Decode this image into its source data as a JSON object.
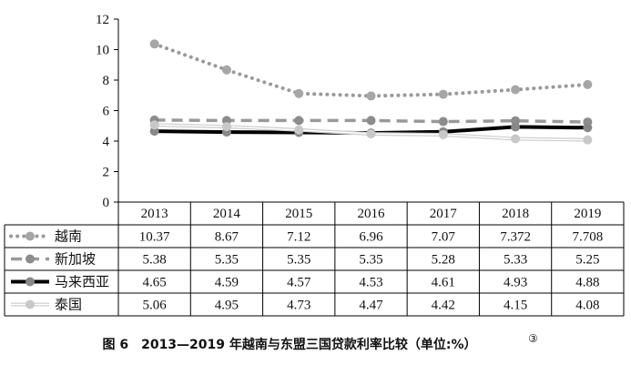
{
  "chart_data": {
    "type": "line",
    "categories": [
      "2013",
      "2014",
      "2015",
      "2016",
      "2017",
      "2018",
      "2019"
    ],
    "ylim": [
      0,
      12
    ],
    "yticks": [
      "0",
      "2",
      "4",
      "6",
      "8",
      "10",
      "12"
    ],
    "grid": false,
    "legend": "table-left",
    "series": [
      {
        "name": "越南",
        "values": [
          10.37,
          8.67,
          7.12,
          6.96,
          7.07,
          7.372,
          7.708
        ],
        "labels": [
          "10.37",
          "8.67",
          "7.12",
          "6.96",
          "7.07",
          "7.372",
          "7.708"
        ],
        "color": "#9a9a9a"
      },
      {
        "name": "新加坡",
        "values": [
          5.38,
          5.35,
          5.35,
          5.35,
          5.28,
          5.33,
          5.25
        ],
        "labels": [
          "5.38",
          "5.35",
          "5.35",
          "5.35",
          "5.28",
          "5.33",
          "5.25"
        ],
        "color": "#999999"
      },
      {
        "name": "马来西亚",
        "values": [
          4.65,
          4.59,
          4.57,
          4.53,
          4.61,
          4.93,
          4.88
        ],
        "labels": [
          "4.65",
          "4.59",
          "4.57",
          "4.53",
          "4.61",
          "4.93",
          "4.88"
        ],
        "color": "#000000"
      },
      {
        "name": "泰国",
        "values": [
          5.06,
          4.95,
          4.73,
          4.47,
          4.42,
          4.15,
          4.08
        ],
        "labels": [
          "5.06",
          "4.95",
          "4.73",
          "4.47",
          "4.42",
          "4.15",
          "4.08"
        ],
        "color": "#bdbdbd"
      }
    ],
    "title": "图 6　2013—2019 年越南与东盟三国贷款利率比较（单位:%）",
    "title_mark": "③"
  }
}
